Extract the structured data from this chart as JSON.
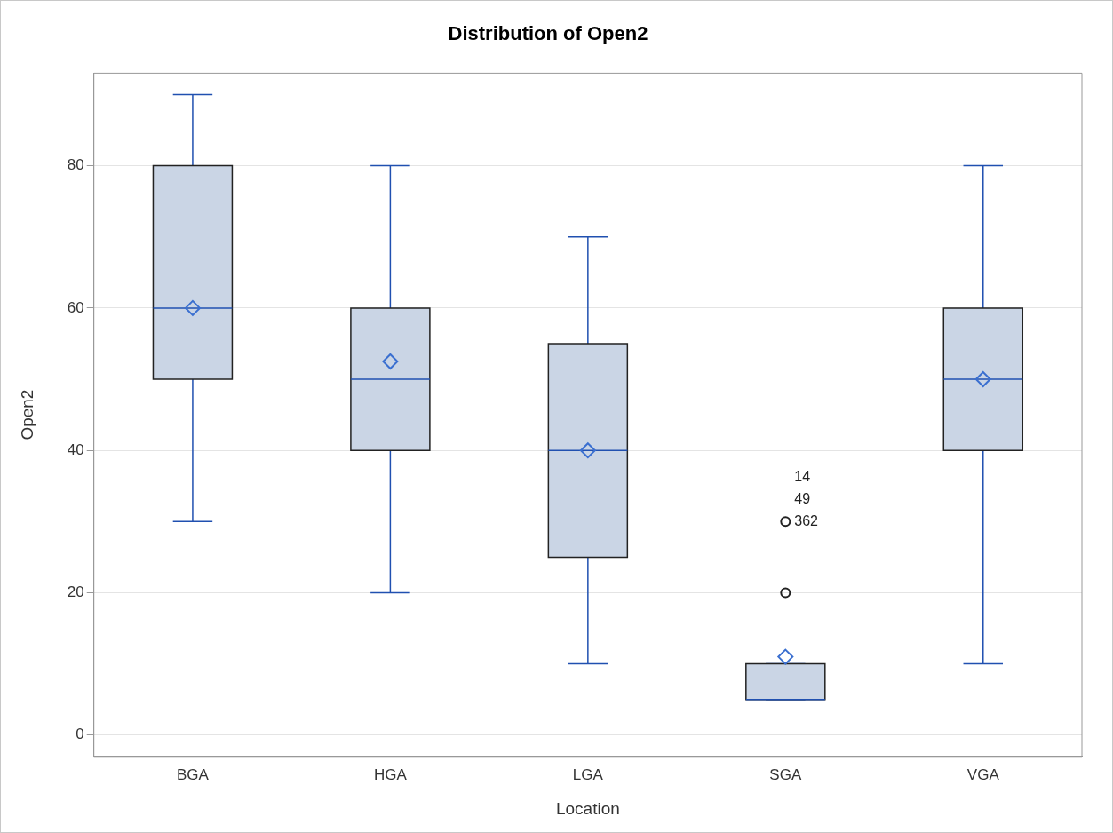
{
  "chart_data": {
    "type": "box",
    "title": "Distribution of Open2",
    "xlabel": "Location",
    "ylabel": "Open2",
    "categories": [
      "BGA",
      "HGA",
      "LGA",
      "SGA",
      "VGA"
    ],
    "boxes": [
      {
        "low": 30,
        "q1": 50,
        "median": 60,
        "q3": 80,
        "high": 90,
        "mean": 60
      },
      {
        "low": 20,
        "q1": 40,
        "median": 50,
        "q3": 60,
        "high": 80,
        "mean": 52.5
      },
      {
        "low": 10,
        "q1": 25,
        "median": 40,
        "q3": 55,
        "high": 70,
        "mean": 40
      },
      {
        "low": 5,
        "q1": 5,
        "median": 5,
        "q3": 10,
        "high": 10,
        "mean": 11,
        "outliers": [
          30,
          20
        ]
      },
      {
        "low": 10,
        "q1": 40,
        "median": 50,
        "q3": 60,
        "high": 80,
        "mean": 50
      }
    ],
    "color": "#cad5e5",
    "ylim": [
      -3,
      93
    ],
    "yticks": [
      0,
      20,
      40,
      60,
      80
    ],
    "grid": "y",
    "legend": false,
    "annotations": [
      "14",
      "49",
      "362"
    ]
  }
}
